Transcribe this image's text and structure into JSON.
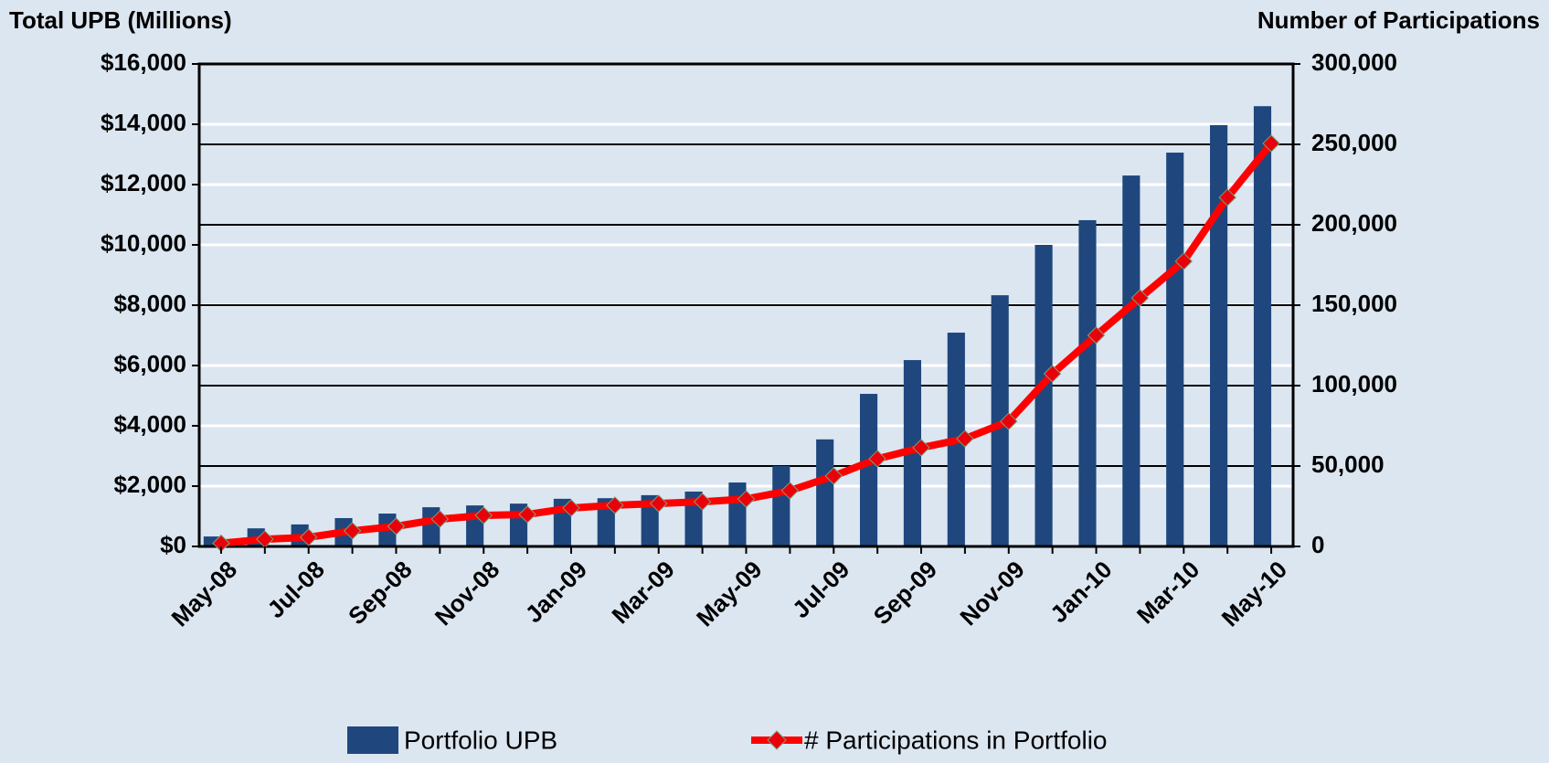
{
  "chart_data": {
    "type": "bar_line",
    "y_label": "Total UPB (Millions)",
    "y2_label": "Number of Participations",
    "categories": [
      "May-08",
      null,
      "Jul-08",
      null,
      "Sep-08",
      null,
      "Nov-08",
      null,
      "Jan-09",
      null,
      "Mar-09",
      null,
      "May-09",
      null,
      "Jul-09",
      null,
      "Sep-09",
      null,
      "Nov-09",
      null,
      "Jan-10",
      null,
      "Mar-10",
      null,
      "May-10"
    ],
    "series": [
      {
        "name": "Portfolio UPB",
        "type": "bar",
        "color": "#1f477d",
        "values": [
          330,
          600,
          730,
          940,
          1090,
          1300,
          1360,
          1420,
          1580,
          1600,
          1700,
          1820,
          2120,
          2670,
          3550,
          5060,
          6180,
          7090,
          8330,
          10000,
          10820,
          12300,
          13060,
          13970,
          14600
        ]
      },
      {
        "name": "# Participations in Portfolio",
        "type": "line",
        "axis": "y2",
        "color": "#ff0000",
        "marker_color": "#e8000b",
        "values": [
          2000,
          4500,
          5700,
          9700,
          12500,
          17000,
          19300,
          19900,
          23900,
          25600,
          26700,
          27800,
          29500,
          34700,
          43800,
          54500,
          61400,
          67000,
          77800,
          107400,
          131300,
          154500,
          177300,
          217000,
          250600
        ]
      }
    ],
    "ylim": [
      0,
      16000
    ],
    "yticks": [
      {
        "value": 0,
        "label": "$0"
      },
      {
        "value": 2000,
        "label": "$2,000"
      },
      {
        "value": 4000,
        "label": "$4,000"
      },
      {
        "value": 6000,
        "label": "$6,000"
      },
      {
        "value": 8000,
        "label": "$8,000"
      },
      {
        "value": 10000,
        "label": "$10,000"
      },
      {
        "value": 12000,
        "label": "$12,000"
      },
      {
        "value": 14000,
        "label": "$14,000"
      },
      {
        "value": 16000,
        "label": "$16,000"
      }
    ],
    "y2lim": [
      0,
      300000
    ],
    "y2ticks": [
      0,
      {
        "value": 50000,
        "label": "50,000"
      },
      {
        "value": 100000,
        "label": "100,000"
      },
      {
        "value": 150000,
        "label": "150,000"
      },
      {
        "value": 200000,
        "label": "200,000"
      },
      {
        "value": 250000,
        "label": "250,000"
      },
      {
        "value": 300000,
        "label": "300,000"
      }
    ],
    "grid": true,
    "legend": "bottom"
  }
}
